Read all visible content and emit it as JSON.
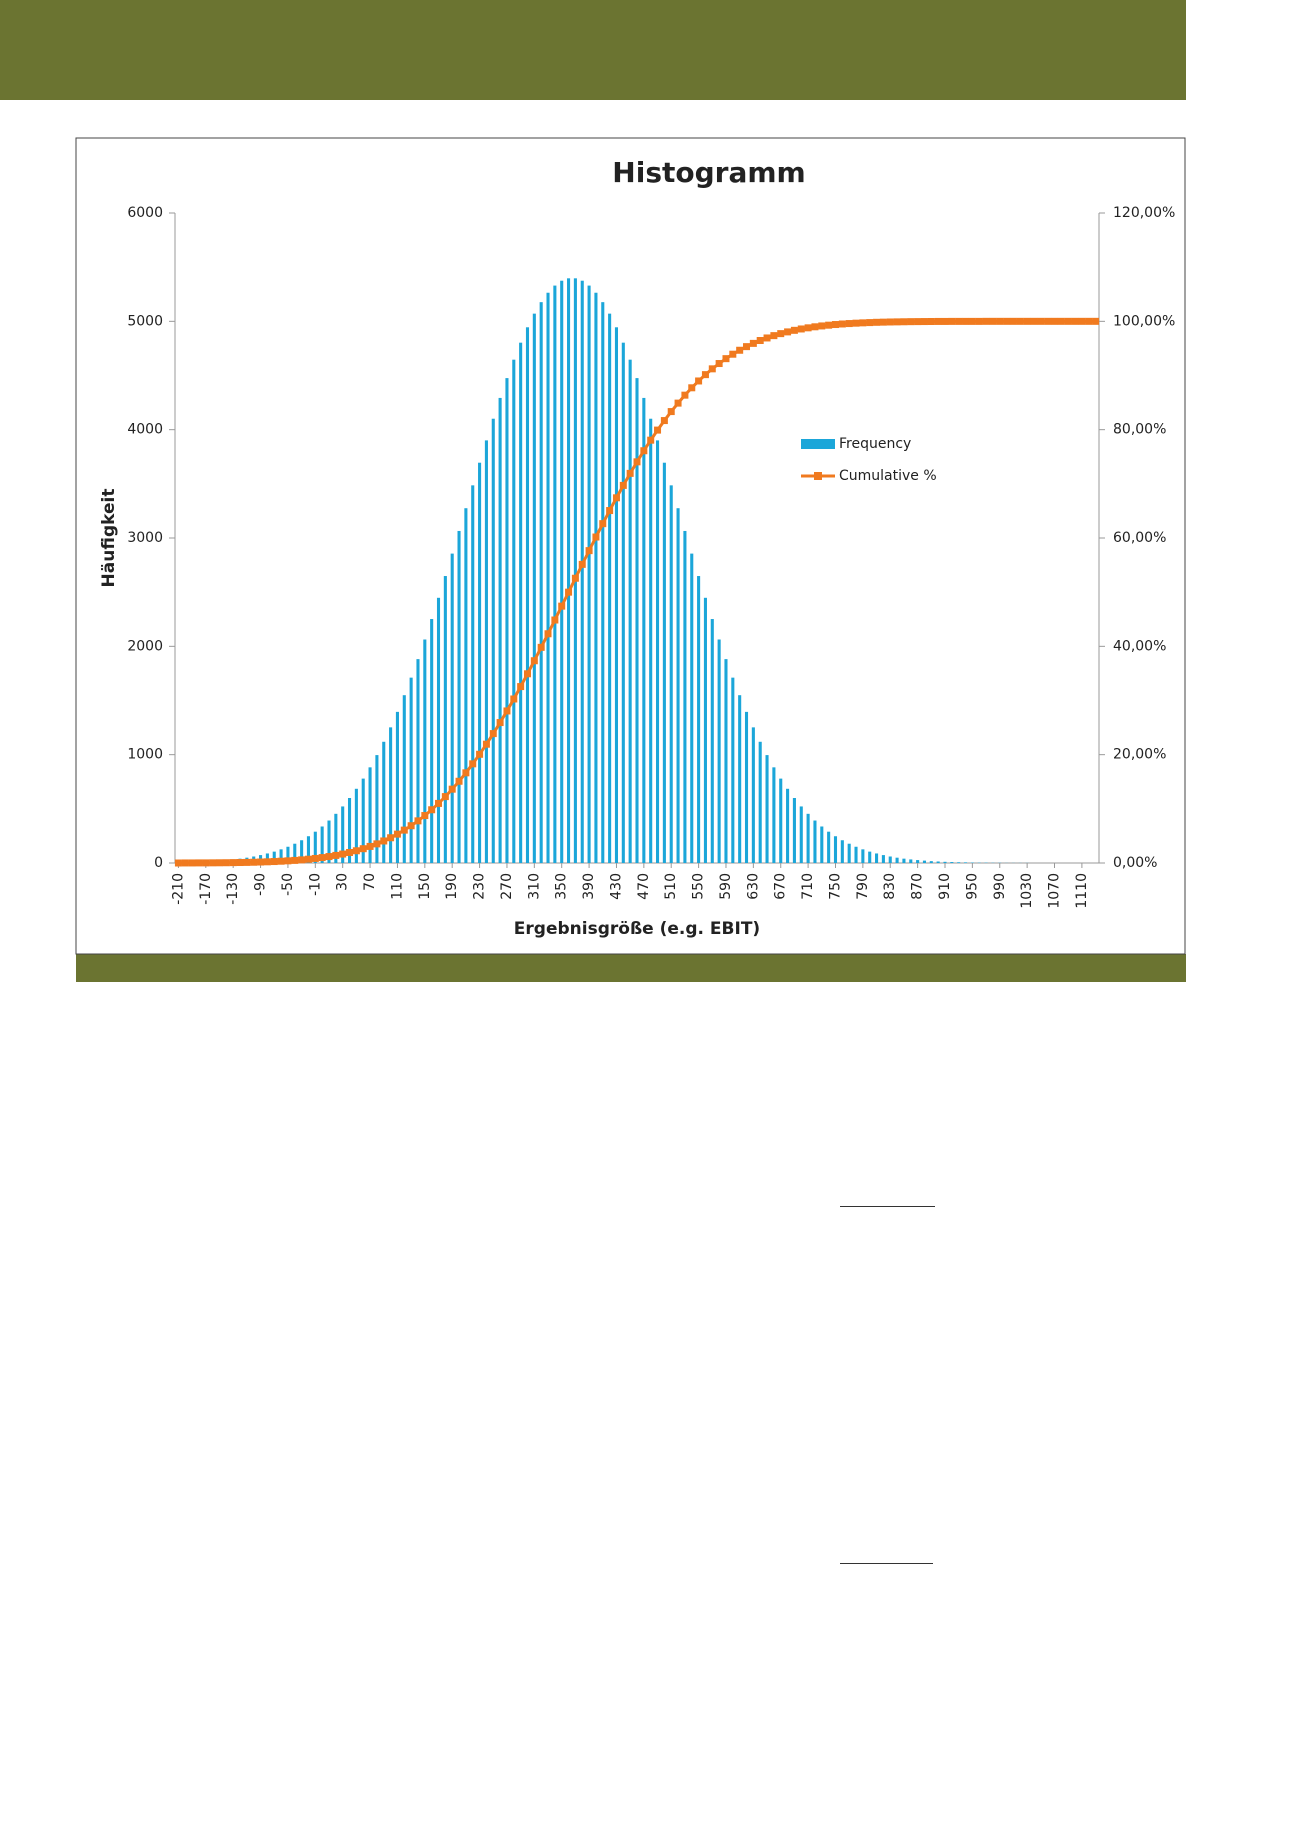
{
  "chart_data": {
    "type": "bar",
    "title": "Histogramm",
    "x_label": "Ergebnisgröße (e.g. EBIT)",
    "y_label": "Häufigkeit",
    "categories": [
      -210,
      null,
      null,
      null,
      -170,
      null,
      null,
      null,
      -130,
      null,
      null,
      null,
      -90,
      null,
      null,
      null,
      -50,
      null,
      null,
      null,
      -10,
      null,
      null,
      null,
      30,
      null,
      null,
      null,
      70,
      null,
      null,
      null,
      110,
      null,
      null,
      null,
      150,
      null,
      null,
      null,
      190,
      null,
      null,
      null,
      230,
      null,
      null,
      null,
      270,
      null,
      null,
      null,
      310,
      null,
      null,
      null,
      350,
      null,
      null,
      null,
      390,
      null,
      null,
      null,
      430,
      null,
      null,
      null,
      470,
      null,
      null,
      null,
      510,
      null,
      null,
      null,
      550,
      null,
      null,
      null,
      590,
      null,
      null,
      null,
      630,
      null,
      null,
      null,
      670,
      null,
      null,
      null,
      710,
      null,
      null,
      null,
      750,
      null,
      null,
      null,
      790,
      null,
      null,
      null,
      830,
      null,
      null,
      null,
      870,
      null,
      null,
      null,
      910,
      null,
      null,
      null,
      950,
      null,
      null,
      null,
      990,
      null,
      null,
      null,
      1030,
      null,
      null,
      null,
      1070,
      null,
      null,
      null,
      1110,
      null,
      null
    ],
    "series": [
      {
        "name": "Frequency",
        "type": "bar",
        "color": "#1ba6d9",
        "values": [
          6,
          7,
          9,
          11,
          14,
          17,
          22,
          27,
          33,
          40,
          49,
          60,
          73,
          88,
          105,
          126,
          150,
          178,
          210,
          247,
          289,
          337,
          392,
          454,
          522,
          600,
          685,
          779,
          883,
          996,
          1119,
          1252,
          1395,
          1549,
          1711,
          1882,
          2063,
          2252,
          2448,
          2649,
          2856,
          3065,
          3275,
          3486,
          3695,
          3901,
          4101,
          4293,
          4476,
          4646,
          4803,
          4945,
          5071,
          5177,
          5264,
          5330,
          5375,
          5397,
          5397,
          5375,
          5330,
          5264,
          5177,
          5071,
          4945,
          4803,
          4646,
          4476,
          4293,
          4101,
          3901,
          3695,
          3486,
          3275,
          3065,
          2856,
          2649,
          2448,
          2252,
          2063,
          1882,
          1711,
          1549,
          1395,
          1252,
          1119,
          996,
          883,
          779,
          685,
          600,
          522,
          454,
          392,
          337,
          289,
          247,
          210,
          178,
          150,
          126,
          105,
          88,
          73,
          60,
          49,
          40,
          33,
          27,
          22,
          17,
          14,
          11,
          9,
          7,
          6,
          4,
          3,
          3,
          2,
          2,
          1,
          1,
          1,
          1,
          0,
          0,
          0,
          0,
          0,
          0,
          0,
          0,
          0,
          0
        ]
      },
      {
        "name": "Cumulative %",
        "type": "line",
        "axis": "y2",
        "color": "#f07a1f",
        "values": [
          0,
          0.01,
          0.01,
          0.02,
          0.02,
          0.03,
          0.04,
          0.05,
          0.07,
          0.09,
          0.11,
          0.14,
          0.18,
          0.22,
          0.27,
          0.33,
          0.4,
          0.48,
          0.58,
          0.7,
          0.84,
          1,
          1.19,
          1.4,
          1.65,
          1.94,
          2.26,
          2.64,
          3.06,
          3.53,
          4.07,
          4.66,
          5.33,
          6.07,
          6.88,
          7.78,
          8.76,
          9.83,
          11,
          12.26,
          13.63,
          15.09,
          16.65,
          18.31,
          20.07,
          21.93,
          23.89,
          25.93,
          28.07,
          30.28,
          32.57,
          34.93,
          37.34,
          39.81,
          42.32,
          44.86,
          47.42,
          50,
          52.57,
          55.13,
          57.67,
          60.18,
          62.65,
          65.07,
          67.42,
          69.71,
          71.93,
          74.06,
          76.11,
          78.06,
          79.92,
          81.68,
          83.34,
          84.9,
          86.37,
          87.73,
          88.99,
          90.16,
          91.23,
          92.21,
          93.11,
          93.93,
          94.66,
          95.33,
          95.93,
          96.46,
          96.93,
          97.36,
          97.73,
          98.05,
          98.34,
          98.59,
          98.8,
          98.99,
          99.15,
          99.29,
          99.41,
          99.51,
          99.59,
          99.66,
          99.72,
          99.77,
          99.82,
          99.85,
          99.88,
          99.9,
          99.92,
          99.94,
          99.95,
          99.96,
          99.97,
          99.98,
          99.98,
          99.99,
          99.99,
          99.99,
          99.99,
          99.99,
          100,
          100,
          100,
          100,
          100,
          100,
          100,
          100,
          100,
          100,
          100,
          100,
          100,
          100,
          100,
          100,
          100
        ]
      }
    ],
    "ylim": [
      0,
      6000
    ],
    "yticks": [
      0,
      1000,
      2000,
      3000,
      4000,
      5000,
      6000
    ],
    "y2lim": [
      0,
      120
    ],
    "y2ticks": [
      {
        "value": 0,
        "label": "0,00%"
      },
      {
        "value": 20,
        "label": "20,00%"
      },
      {
        "value": 40,
        "label": "40,00%"
      },
      {
        "value": 60,
        "label": "60,00%"
      },
      {
        "value": 80,
        "label": "80,00%"
      },
      {
        "value": 100,
        "label": "100,00%"
      },
      {
        "value": 120,
        "label": "120,00%"
      }
    ],
    "grid": false,
    "legend": "right"
  }
}
